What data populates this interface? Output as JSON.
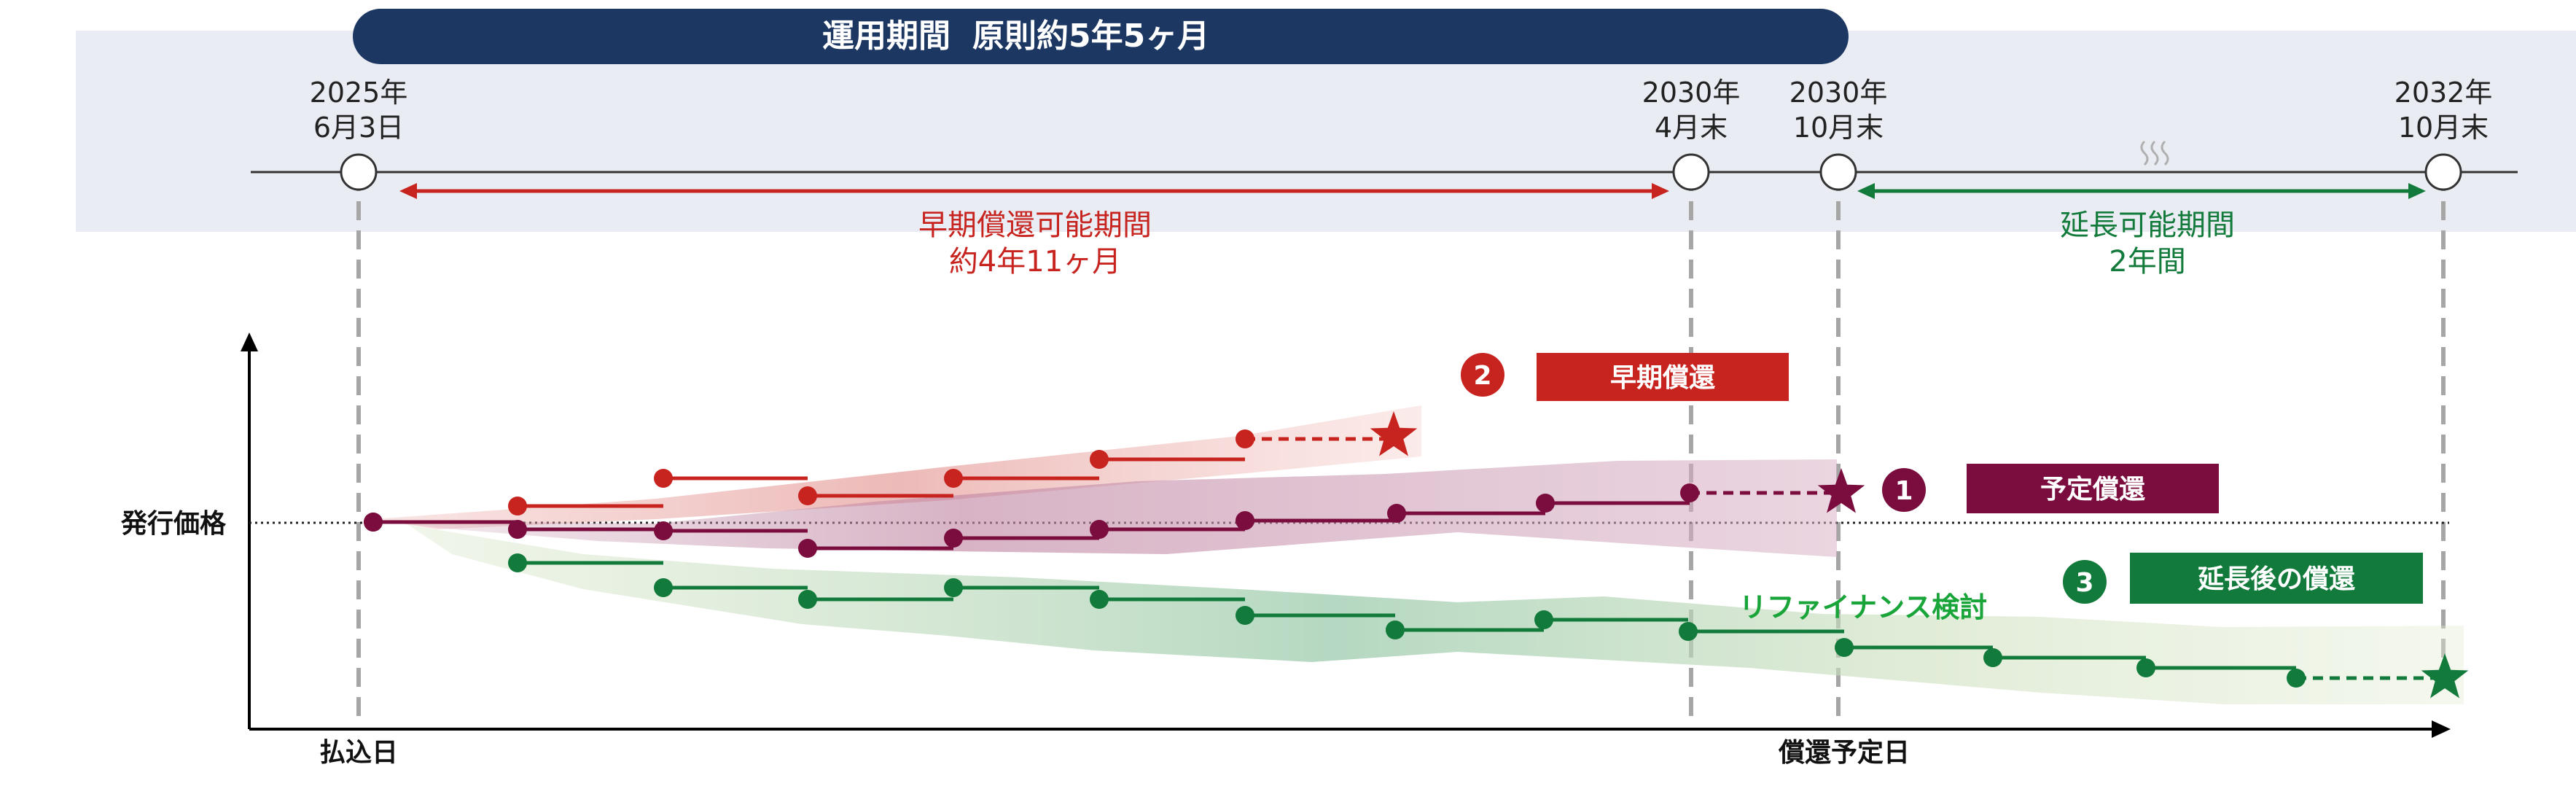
{
  "header": {
    "period_label": "運用期間",
    "period_value": "原則約5年5ヶ月"
  },
  "timeline": {
    "points": [
      {
        "line1": "2025年",
        "line2": "6月3日"
      },
      {
        "line1": "2030年",
        "line2": "4月末"
      },
      {
        "line1": "2030年",
        "line2": "10月末"
      },
      {
        "line1": "2032年",
        "line2": "10月末"
      }
    ],
    "early_period": {
      "line1": "早期償還可能期間",
      "line2": "約4年11ヶ月"
    },
    "extension_period": {
      "line1": "延長可能期間",
      "line2": "2年間"
    }
  },
  "chart": {
    "y_label": "発行価格",
    "x_label_start": "払込日",
    "x_label_end": "償還予定日",
    "refinance_label": "リファイナンス検討"
  },
  "legend": [
    {
      "number": "2",
      "label": "早期償還",
      "color": "#c8241f"
    },
    {
      "number": "1",
      "label": "予定償還",
      "color": "#7a0c3e"
    },
    {
      "number": "3",
      "label": "延長後の償還",
      "color": "#127a3a"
    }
  ],
  "colors": {
    "navy": "#1d3763",
    "band_bg": "#e9ecf2",
    "red": "#c8241f",
    "maroon": "#7a0c3e",
    "green": "#127a3a",
    "green_text": "#1aa53a",
    "dash_gray": "#a6a6a6"
  }
}
